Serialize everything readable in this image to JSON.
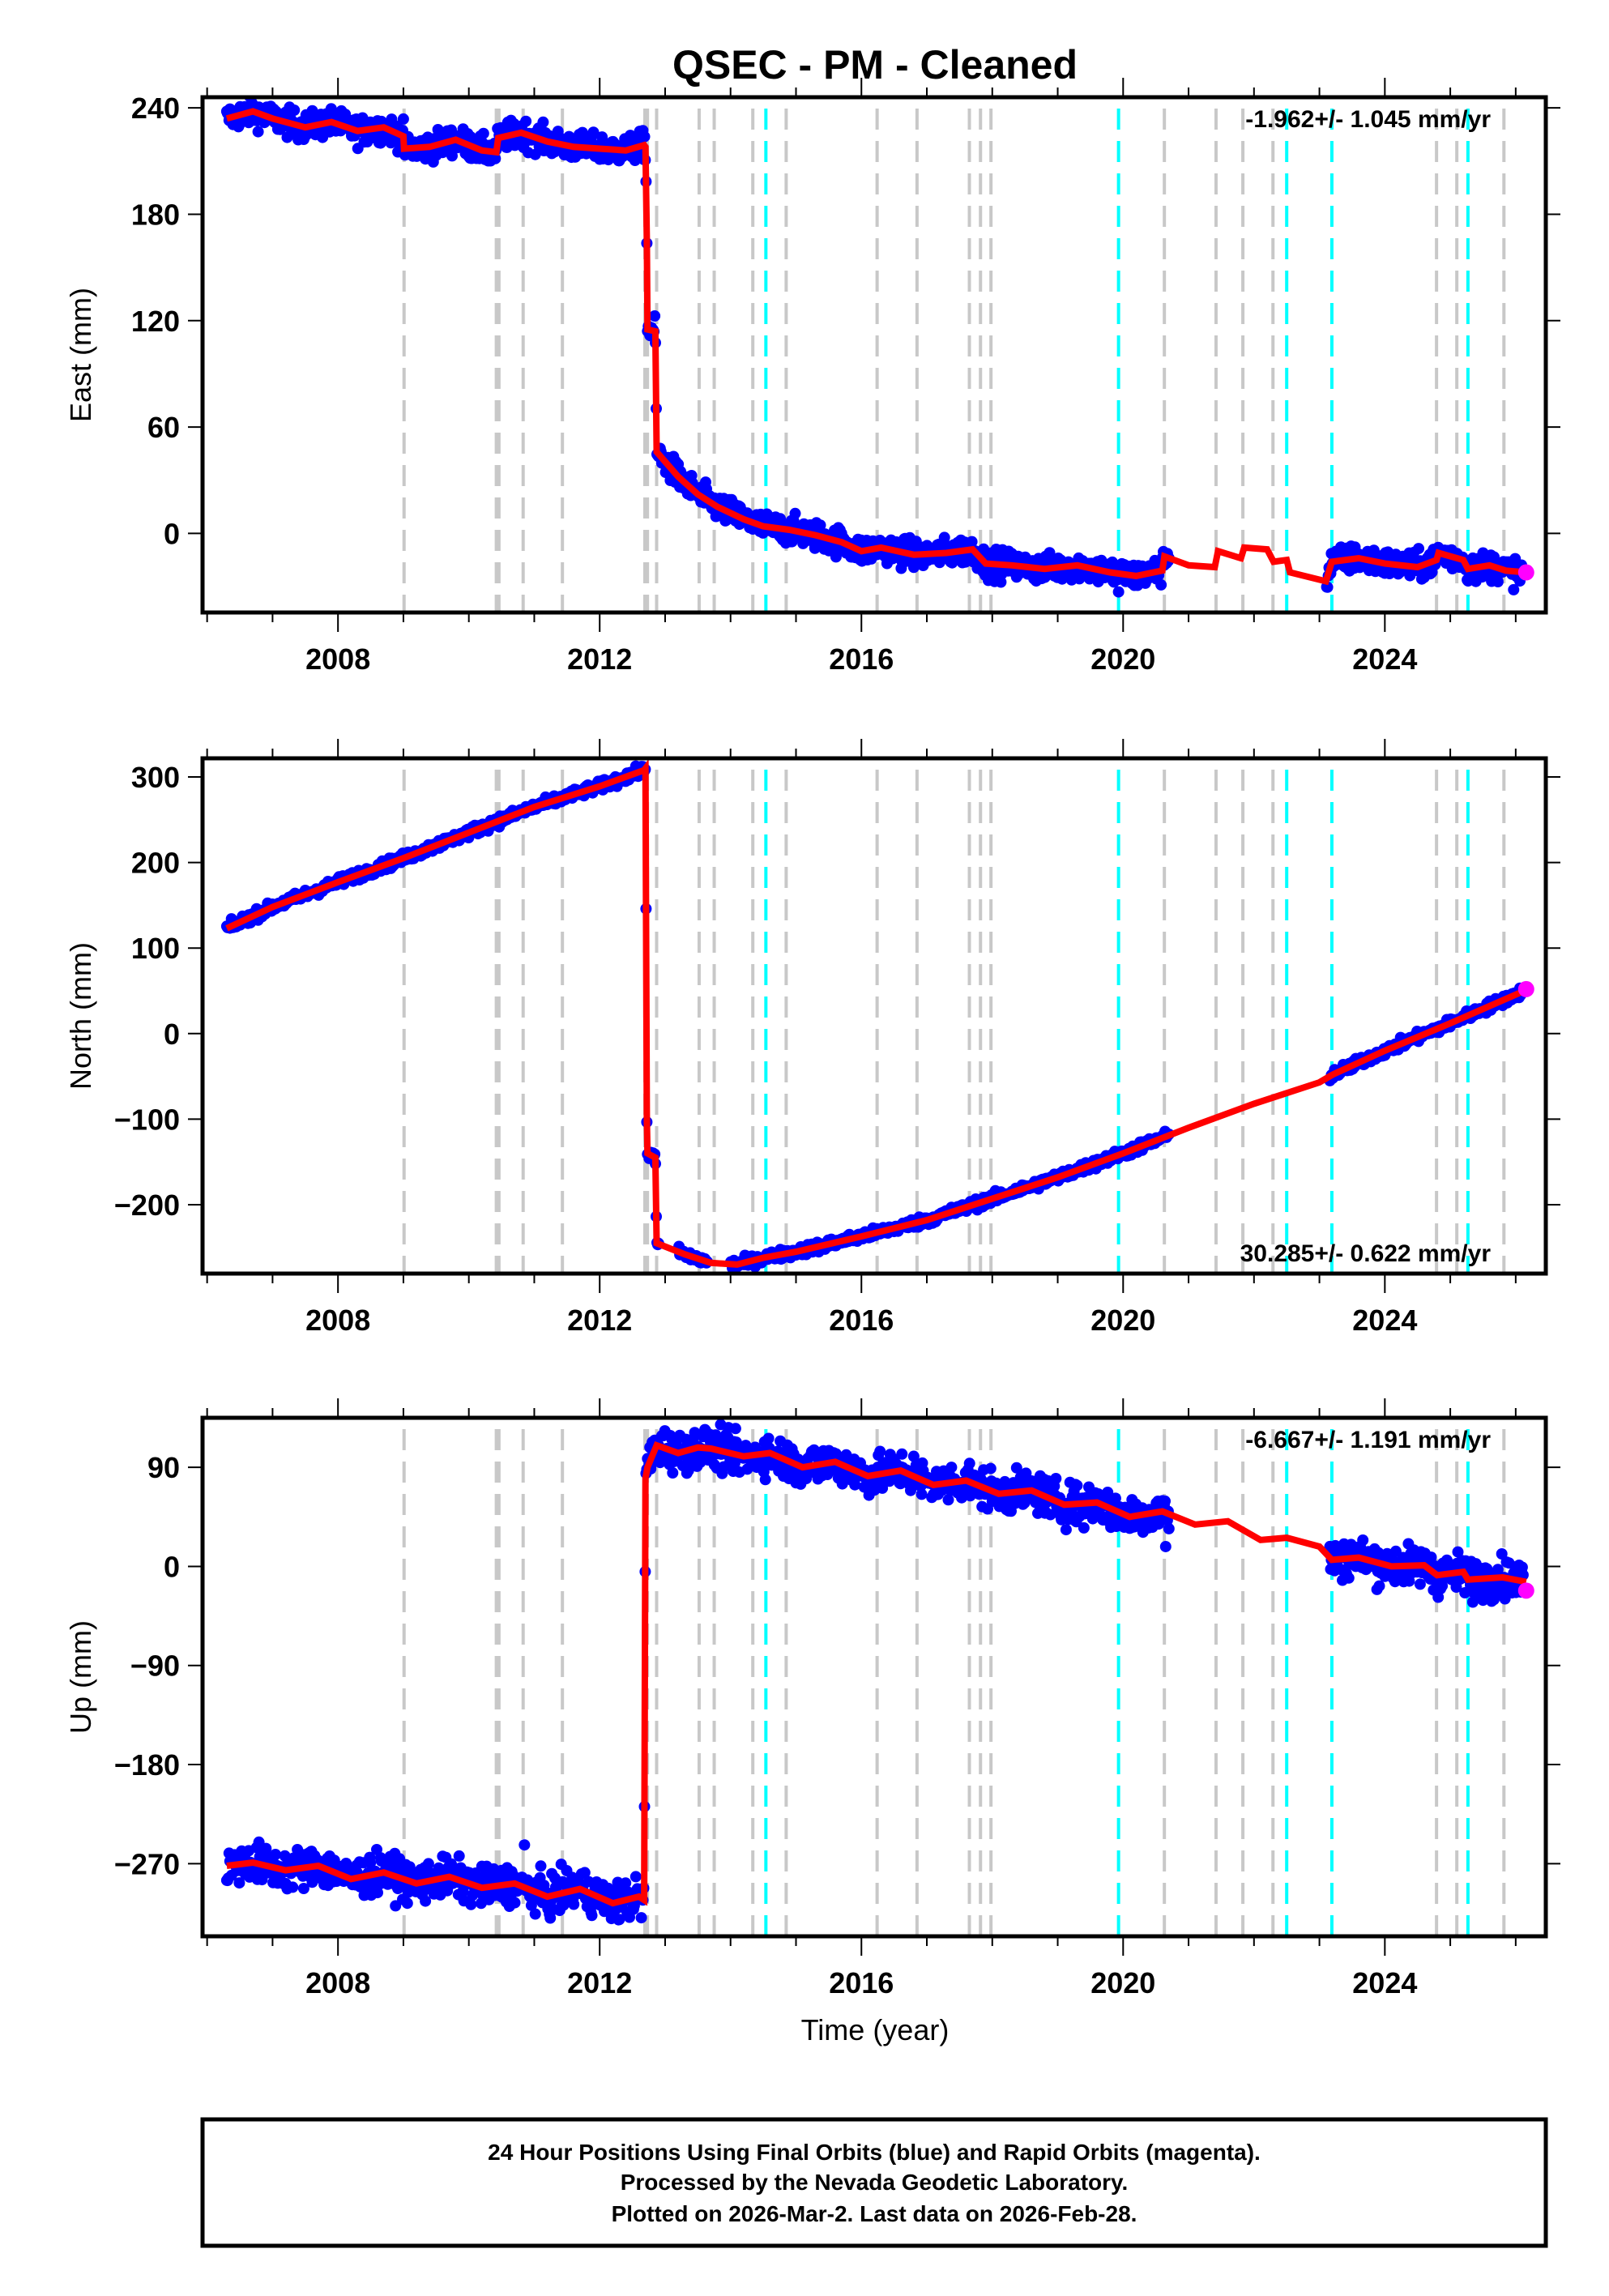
{
  "chart_data": {
    "title": "QSEC  - PM - Cleaned",
    "xlabel": "Time (year)",
    "xlim": [
      2005.93,
      2026.46
    ],
    "x_tick_labels": [
      "2008",
      "2012",
      "2016",
      "2020",
      "2024"
    ],
    "x_major_ticks": [
      2008,
      2012,
      2016,
      2020,
      2024
    ],
    "x_minor_ticks": [
      2006,
      2007,
      2009,
      2010,
      2011,
      2013,
      2014,
      2015,
      2017,
      2018,
      2019,
      2021,
      2022,
      2023,
      2025,
      2026
    ],
    "colors": {
      "final_orbits": "#0000ff",
      "rapid_orbits": "#ff00ff",
      "model": "#ff0000",
      "equipment_change": "#c8c8c8",
      "earthquake": "#00ffff"
    },
    "gray_dashed_lines": [
      2009.01,
      2010.42,
      2010.46,
      2010.83,
      2011.43,
      2012.69,
      2012.73,
      2012.87,
      2013.52,
      2013.75,
      2014.34,
      2014.85,
      2016.24,
      2016.85,
      2017.65,
      2017.82,
      2017.98,
      2020.63,
      2021.42,
      2021.83,
      2022.29,
      2024.79,
      2025.1,
      2025.82
    ],
    "cyan_dashed_lines": [
      2014.54,
      2019.93,
      2022.5,
      2023.19,
      2025.27
    ],
    "panels": [
      {
        "type": "scatter",
        "ylabel": "East (mm)",
        "ylim": [
          -44.6,
          246
        ],
        "y_ticks": [
          240,
          180,
          120,
          60,
          0
        ],
        "y_tick_labels": [
          "240",
          "180",
          "120",
          "60",
          "0"
        ],
        "rate_text": "-1.962+/- 1.045 mm/yr",
        "rate_position": "top-right",
        "noise_mm": 4,
        "model": {
          "x": [
            2006.3,
            2006.7,
            2007.0,
            2007.5,
            2007.9,
            2008.3,
            2008.7,
            2009.0,
            2009.01,
            2009.4,
            2009.8,
            2010.2,
            2010.42,
            2010.45,
            2010.8,
            2011.2,
            2011.6,
            2012.0,
            2012.4,
            2012.68,
            2012.7,
            2012.72,
            2012.73,
            2012.85,
            2012.87,
            2013.2,
            2013.5,
            2013.8,
            2014.2,
            2014.5,
            2014.9,
            2015.3,
            2015.7,
            2016.0,
            2016.3,
            2016.8,
            2017.3,
            2017.7,
            2017.9,
            2018.3,
            2018.8,
            2019.3,
            2019.8,
            2020.2,
            2020.6,
            2020.63,
            2021.0,
            2021.4,
            2021.45,
            2021.8,
            2021.85,
            2022.2,
            2022.3,
            2022.5,
            2022.55,
            2023.1,
            2023.19,
            2023.6,
            2024.0,
            2024.5,
            2024.79,
            2024.82,
            2025.2,
            2025.27,
            2025.6,
            2025.85,
            2026.16
          ],
          "y": [
            234,
            238,
            234,
            229,
            232,
            227,
            229,
            224,
            217,
            218,
            222,
            216,
            215,
            223,
            226,
            221,
            218,
            217,
            216,
            219,
            218,
            165,
            115,
            114,
            46,
            32,
            22,
            15,
            8,
            4,
            2,
            -1,
            -5,
            -10,
            -8,
            -12,
            -11,
            -9,
            -17,
            -18,
            -20,
            -18,
            -22,
            -24,
            -21,
            -13,
            -18,
            -19,
            -10,
            -14,
            -8,
            -9,
            -16,
            -15,
            -22,
            -27,
            -16,
            -14,
            -17,
            -19,
            -15,
            -11,
            -15,
            -20,
            -18,
            -21,
            -22
          ]
        },
        "data_gaps": [
          [
            2020.7,
            2023.1
          ]
        ],
        "outliers": [
          [
            2019.93,
            -33
          ],
          [
            2010.83,
            222
          ]
        ],
        "rapid_last": [
          2026.16,
          -22
        ]
      },
      {
        "type": "scatter",
        "ylabel": "North (mm)",
        "ylim": [
          -280.5,
          321.8
        ],
        "y_ticks": [
          300,
          200,
          100,
          0,
          -100,
          -200
        ],
        "y_tick_labels": [
          "300",
          "200",
          "100",
          "0",
          "−100",
          "−200"
        ],
        "rate_text": "30.285+/- 0.622 mm/yr",
        "rate_position": "bottom-right",
        "noise_mm": 3,
        "model": {
          "x": [
            2006.3,
            2007.0,
            2008.0,
            2009.0,
            2010.0,
            2011.0,
            2012.0,
            2012.68,
            2012.7,
            2012.72,
            2012.73,
            2012.85,
            2012.87,
            2013.3,
            2013.7,
            2014.1,
            2014.5,
            2015.0,
            2016.0,
            2017.0,
            2018.0,
            2019.0,
            2020.0,
            2021.0,
            2022.0,
            2023.0,
            2023.2,
            2024.0,
            2025.0,
            2026.16
          ],
          "y": [
            123,
            148,
            177,
            205,
            235,
            265,
            289,
            308,
            310,
            -100,
            -140,
            -145,
            -245,
            -258,
            -268,
            -270,
            -262,
            -255,
            -237,
            -218,
            -193,
            -168,
            -140,
            -110,
            -82,
            -57,
            -48,
            -20,
            12,
            51
          ]
        },
        "data_gaps": [
          [
            2012.9,
            2013.2
          ],
          [
            2013.65,
            2014.0
          ],
          [
            2020.7,
            2023.15
          ]
        ],
        "outliers": [],
        "rapid_last": [
          2026.16,
          52
        ]
      },
      {
        "type": "scatter",
        "ylabel": "Up (mm)",
        "ylim": [
          -336,
          135
        ],
        "y_ticks": [
          90,
          0,
          -90,
          -180,
          -270
        ],
        "y_tick_labels": [
          "90",
          "0",
          "−90",
          "−180",
          "−270"
        ],
        "rate_text": "-6.667+/- 1.191 mm/yr",
        "rate_position": "top-right",
        "noise_mm": 9,
        "model": {
          "x": [
            2006.3,
            2006.7,
            2007.2,
            2007.7,
            2008.2,
            2008.7,
            2009.2,
            2009.7,
            2010.2,
            2010.7,
            2011.2,
            2011.7,
            2012.2,
            2012.6,
            2012.68,
            2012.7,
            2012.73,
            2012.87,
            2013.2,
            2013.5,
            2013.7,
            2014.2,
            2014.6,
            2015.1,
            2015.6,
            2016.1,
            2016.6,
            2017.1,
            2017.6,
            2018.1,
            2018.6,
            2019.1,
            2019.6,
            2020.1,
            2020.6,
            2021.1,
            2021.6,
            2022.1,
            2022.5,
            2023.0,
            2023.19,
            2023.6,
            2024.1,
            2024.6,
            2024.8,
            2025.2,
            2025.27,
            2025.8,
            2026.16
          ],
          "y": [
            -272,
            -269,
            -276,
            -272,
            -284,
            -278,
            -288,
            -282,
            -292,
            -288,
            -300,
            -293,
            -306,
            -300,
            -303,
            80,
            90,
            110,
            103,
            108,
            107,
            100,
            103,
            90,
            95,
            82,
            87,
            74,
            78,
            66,
            69,
            56,
            58,
            45,
            50,
            38,
            41,
            24,
            26,
            18,
            6,
            8,
            0,
            1,
            -8,
            -5,
            -12,
            -10,
            -14
          ]
        },
        "data_gaps": [
          [
            2020.7,
            2023.15
          ]
        ],
        "outliers": [
          [
            2010.85,
            -253
          ],
          [
            2008.9,
            -290
          ],
          [
            2016.8,
            100
          ],
          [
            2019.4,
            35
          ],
          [
            2020.65,
            18
          ]
        ],
        "rapid_last": [
          2026.16,
          -22
        ]
      }
    ]
  },
  "footer": {
    "line1": "24 Hour Positions Using Final Orbits (blue) and Rapid Orbits (magenta).",
    "line2": "Processed by the Nevada Geodetic Laboratory.",
    "line3": "Plotted on 2026-Mar-2. Last data on 2026-Feb-28."
  }
}
